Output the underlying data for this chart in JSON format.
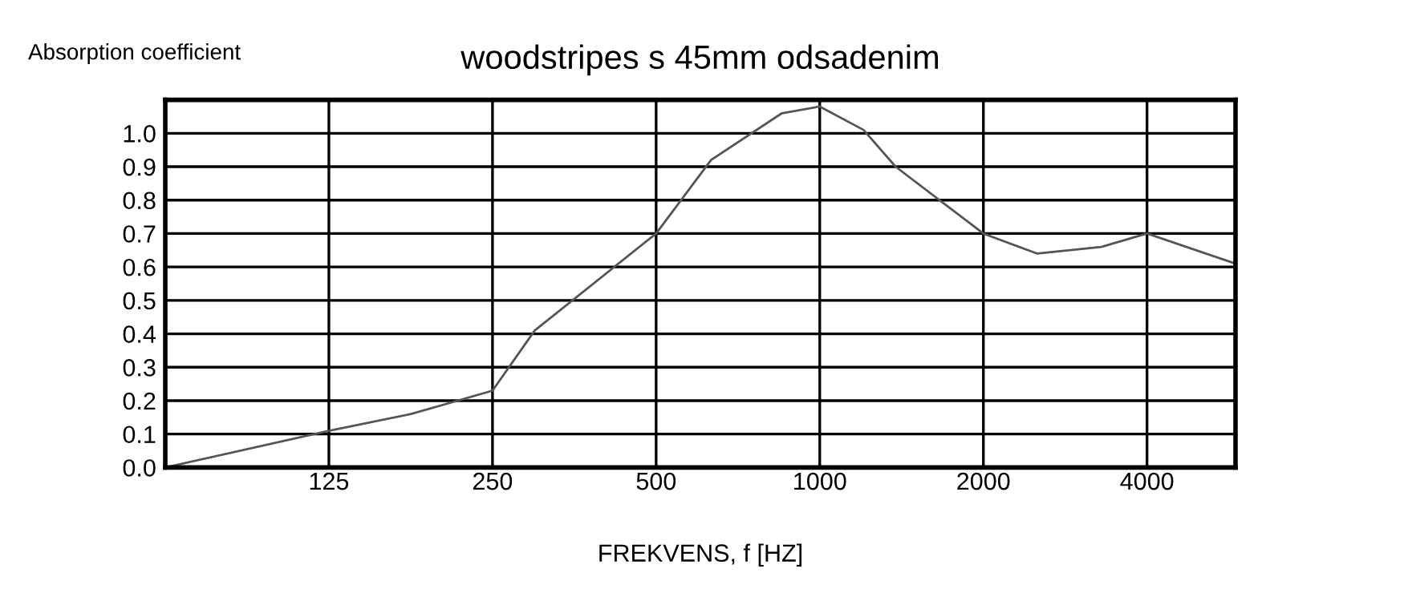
{
  "chart_data": {
    "type": "line",
    "title": "woodstripes s 45mm odsadenim",
    "ylabel": "Absorption coefficient",
    "xlabel": "FREKVENS, f [HZ]",
    "log": "x",
    "x": [
      62.5,
      125,
      177,
      250,
      299,
      500,
      631,
      852,
      1000,
      1204,
      1379,
      2000,
      2514,
      3297,
      4000,
      5820
    ],
    "series": [
      {
        "color": "#555555",
        "values": [
          0.0,
          0.11,
          0.16,
          0.23,
          0.41,
          0.7,
          0.92,
          1.06,
          1.08,
          1.01,
          0.9,
          0.7,
          0.64,
          0.66,
          0.7,
          0.61
        ]
      }
    ],
    "xlim": [
      62.5,
      5820
    ],
    "xticks": [
      125,
      250,
      500,
      1000,
      2000,
      4000
    ],
    "ylim": [
      0,
      1.1
    ],
    "yticks": [
      {
        "value": 0,
        "label": "0.0"
      },
      {
        "value": 0.1,
        "label": "0.1"
      },
      {
        "value": 0.2,
        "label": "0.2"
      },
      {
        "value": 0.3,
        "label": "0.3"
      },
      {
        "value": 0.4,
        "label": "0.4"
      },
      {
        "value": 0.5,
        "label": "0.5"
      },
      {
        "value": 0.6,
        "label": "0.6"
      },
      {
        "value": 0.7,
        "label": "0.7"
      },
      {
        "value": 0.8,
        "label": "0.8"
      },
      {
        "value": 0.9,
        "label": "0.9"
      },
      {
        "value": 1.0,
        "label": "1.0"
      },
      {
        "value": 1.1,
        "label": null
      }
    ],
    "grid": true,
    "legend": false,
    "marker": "none",
    "line_style": "solid"
  }
}
